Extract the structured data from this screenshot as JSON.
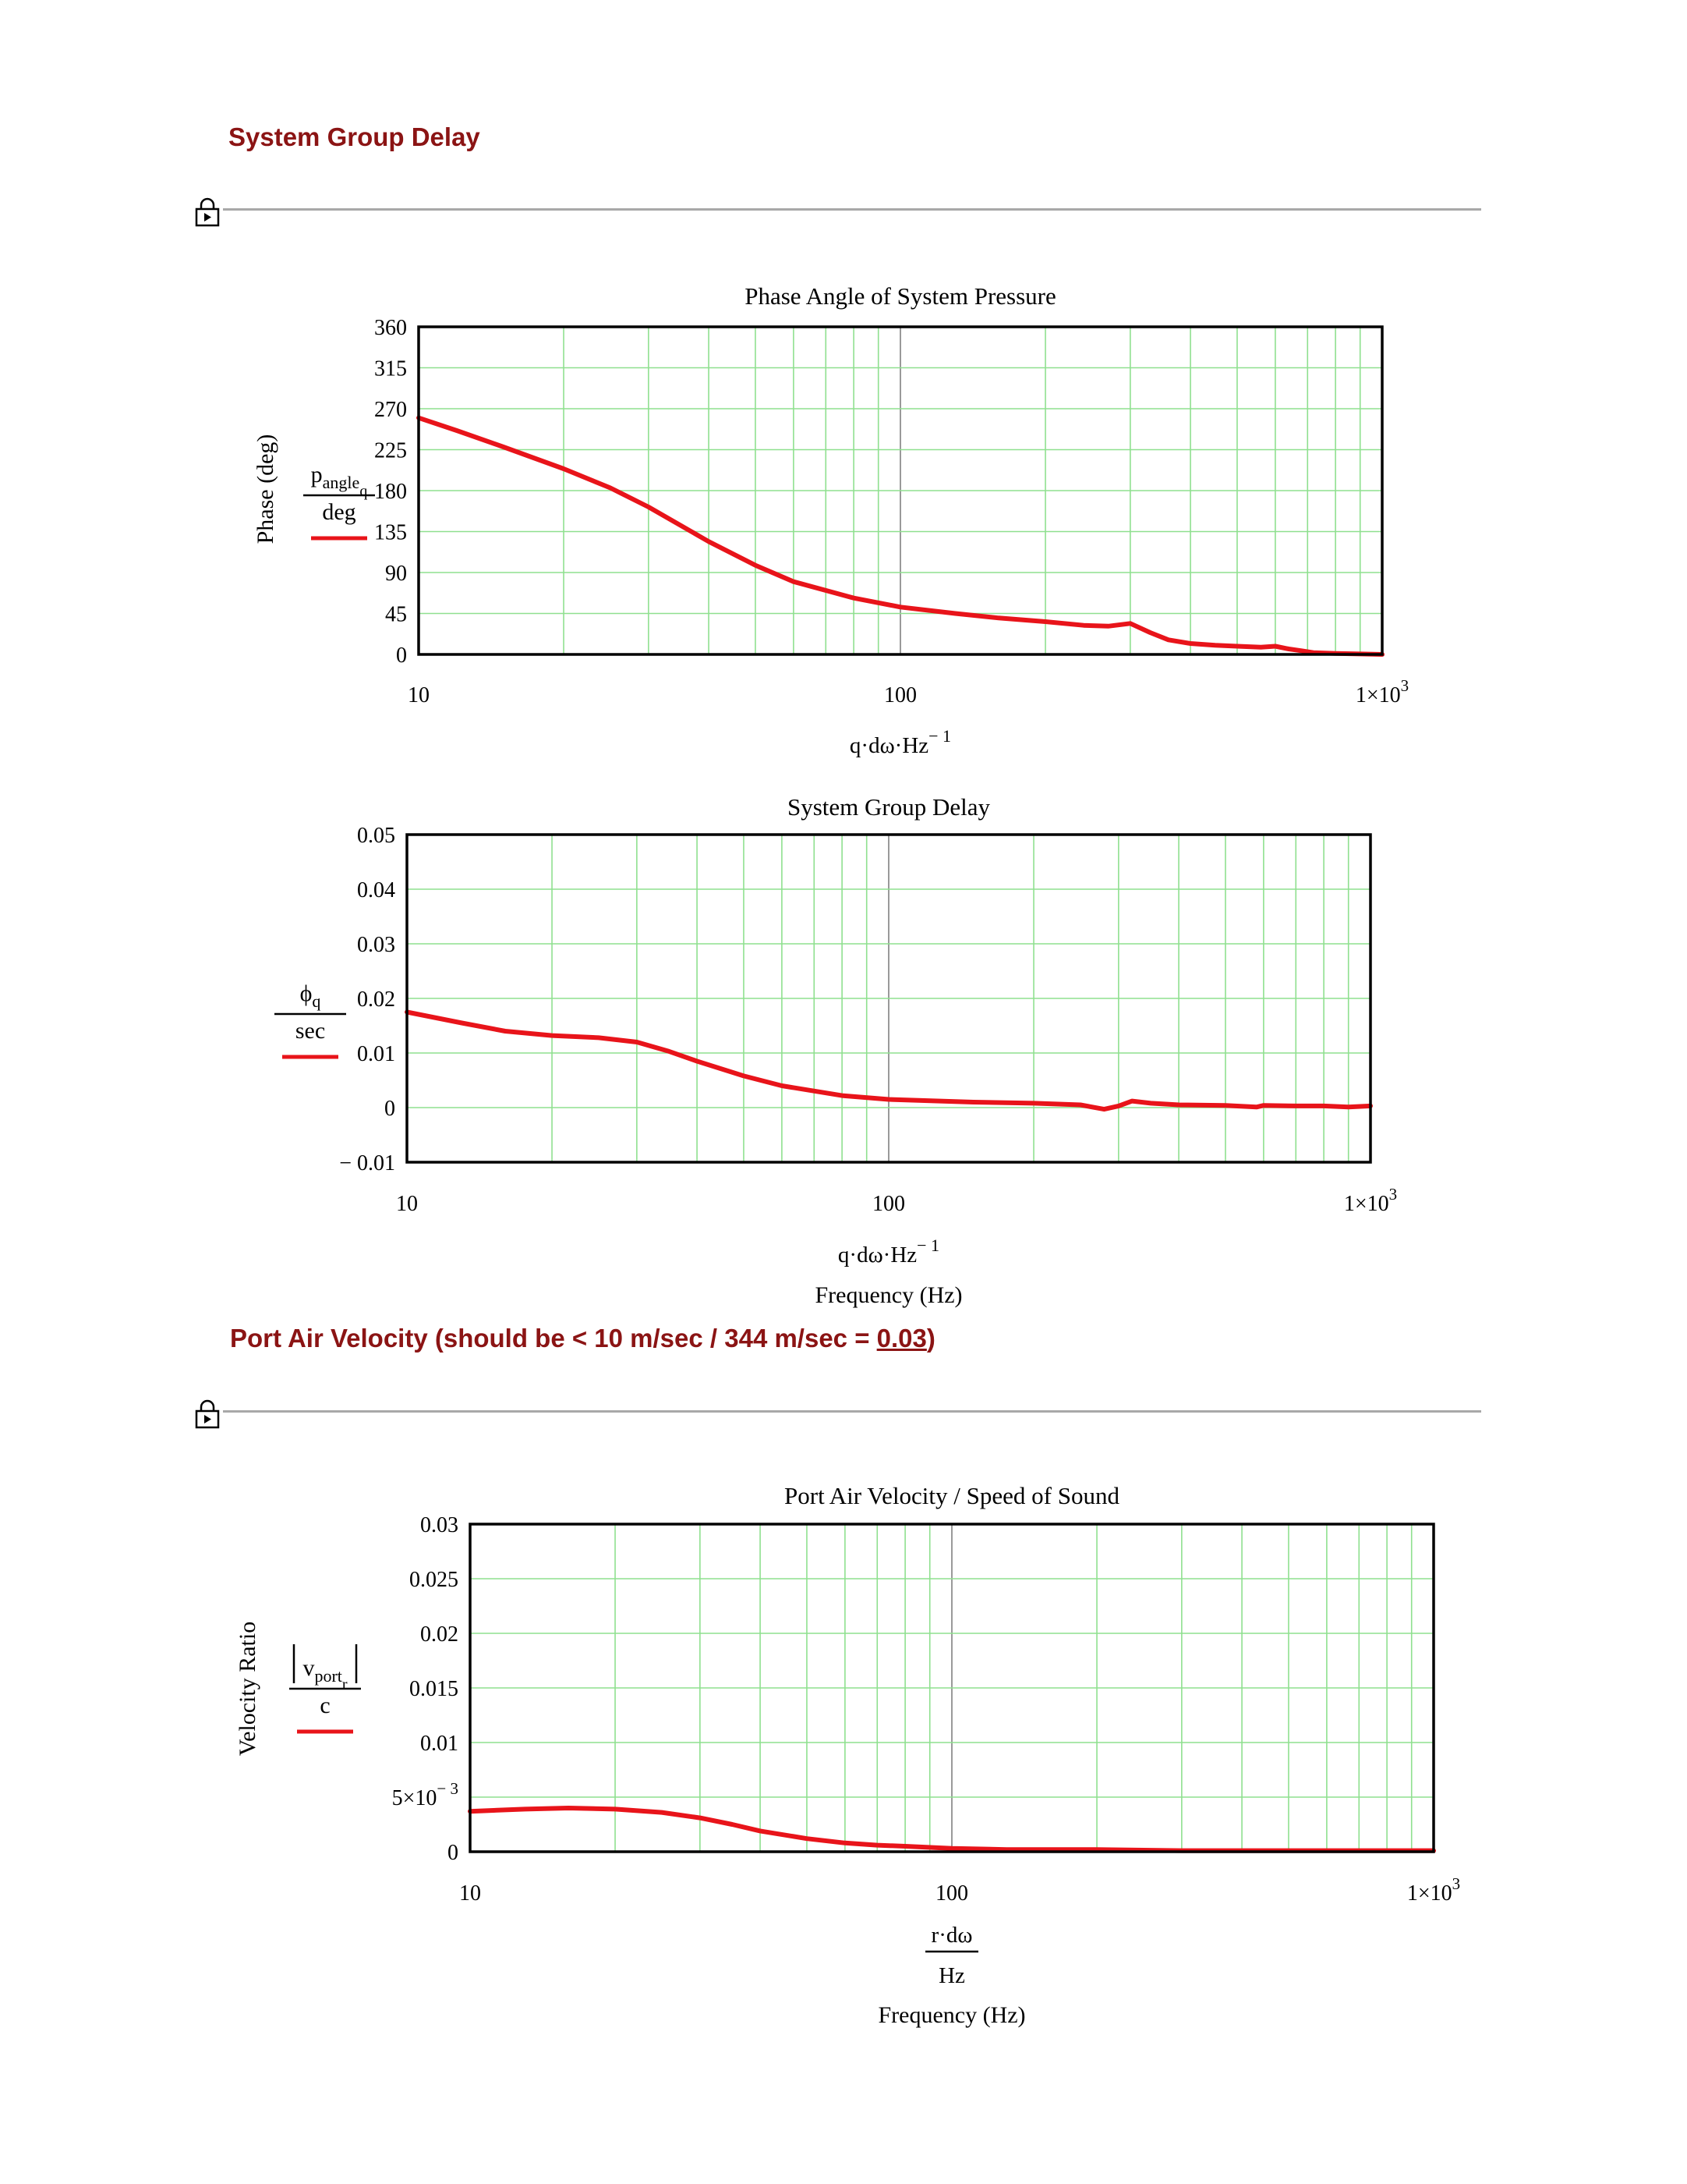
{
  "sections": [
    {
      "title": "System Group Delay"
    },
    {
      "title_prefix": "Port Air Velocity (should be < 10 m/sec / 344 m/sec = ",
      "title_value": "0.03",
      "title_suffix": ")"
    }
  ],
  "colors": {
    "heading": "#8b1414",
    "trace": "#e8141a",
    "grid": "#8fe08f",
    "frame": "#000000",
    "rule": "#a8a8a8"
  },
  "icons": [
    "lock-icon"
  ],
  "chart_data": [
    {
      "type": "line",
      "title": "Phase Angle of System Pressure",
      "ylabel": "Phase (deg)",
      "y_expression": {
        "num": "p",
        "num_sub": "angle",
        "num_sub2": "q",
        "den": "deg"
      },
      "x_expression": {
        "text": "q·dω·Hz",
        "sup": "− 1"
      },
      "xlabel": "",
      "x_scale": "log",
      "xlim": [
        10,
        1000
      ],
      "ylim": [
        0,
        360
      ],
      "x_ticks": [
        "10",
        "100",
        "1×10"
      ],
      "x_tick_last_sup": "3",
      "y_ticks": [
        "0",
        "45",
        "90",
        "135",
        "180",
        "225",
        "270",
        "315",
        "360"
      ],
      "grid": true,
      "series": [
        {
          "x": [
            10,
            12,
            15,
            20,
            25,
            30,
            40,
            50,
            60,
            80,
            100,
            130,
            160,
            200,
            240,
            270,
            300,
            330,
            360,
            400,
            450,
            500,
            560,
            600,
            640,
            680,
            720,
            800,
            900,
            1000
          ],
          "values": [
            260,
            246,
            228,
            204,
            183,
            162,
            124,
            98,
            80,
            62,
            52,
            45,
            40,
            36,
            32,
            31,
            34,
            24,
            16,
            12,
            10,
            9,
            8,
            9,
            6,
            4,
            2,
            1,
            0.5,
            0
          ]
        }
      ]
    },
    {
      "type": "line",
      "title": "System Group Delay",
      "ylabel": "",
      "y_expression": {
        "num": "ϕ",
        "num_sub": "q",
        "den": "sec"
      },
      "x_expression": {
        "text": "q·dω·Hz",
        "sup": "− 1"
      },
      "xlabel": "Frequency (Hz)",
      "x_scale": "log",
      "xlim": [
        10,
        1000
      ],
      "ylim": [
        -0.01,
        0.05
      ],
      "x_ticks": [
        "10",
        "100",
        "1×10"
      ],
      "x_tick_last_sup": "3",
      "y_ticks": [
        "− 0.01",
        "0",
        "0.01",
        "0.02",
        "0.03",
        "0.04",
        "0.05"
      ],
      "grid": true,
      "series": [
        {
          "x": [
            10,
            13,
            16,
            20,
            25,
            30,
            35,
            40,
            50,
            60,
            80,
            100,
            150,
            200,
            250,
            280,
            300,
            320,
            350,
            400,
            500,
            580,
            600,
            700,
            800,
            900,
            1000
          ],
          "values": [
            0.0175,
            0.0155,
            0.014,
            0.0132,
            0.0128,
            0.012,
            0.0103,
            0.0085,
            0.0058,
            0.004,
            0.0022,
            0.0015,
            0.001,
            0.0008,
            0.0005,
            -0.0003,
            0.0003,
            0.0012,
            0.0008,
            0.0005,
            0.0004,
            0.0001,
            0.0004,
            0.0003,
            0.0003,
            0.0001,
            0.0003
          ]
        }
      ]
    },
    {
      "type": "line",
      "title": "Port Air Velocity / Speed of Sound",
      "ylabel": "Velocity Ratio",
      "y_expression": {
        "num": "v",
        "num_sub": "port",
        "num_sub2": "r",
        "den": "c",
        "abs": true
      },
      "x_expression": {
        "num": "r·dω",
        "den": "Hz"
      },
      "xlabel": "Frequency (Hz)",
      "x_scale": "log",
      "xlim": [
        10,
        1000
      ],
      "ylim": [
        0,
        0.03
      ],
      "x_ticks": [
        "10",
        "100",
        "1×10"
      ],
      "x_tick_last_sup": "3",
      "y_ticks": [
        "0",
        "5×10",
        "0.01",
        "0.015",
        "0.02",
        "0.025",
        "0.03"
      ],
      "y_tick_sup": {
        "index": 1,
        "sup": "− 3"
      },
      "grid": true,
      "series": [
        {
          "x": [
            10,
            13,
            16,
            20,
            25,
            30,
            35,
            40,
            50,
            60,
            70,
            80,
            100,
            130,
            200,
            300,
            500,
            700,
            1000
          ],
          "values": [
            0.0037,
            0.0039,
            0.004,
            0.0039,
            0.0036,
            0.0031,
            0.0025,
            0.0019,
            0.0012,
            0.0008,
            0.0006,
            0.0005,
            0.0003,
            0.0002,
            0.0002,
            0.0001,
            0.0001,
            0.0001,
            0.0001
          ]
        }
      ]
    }
  ]
}
